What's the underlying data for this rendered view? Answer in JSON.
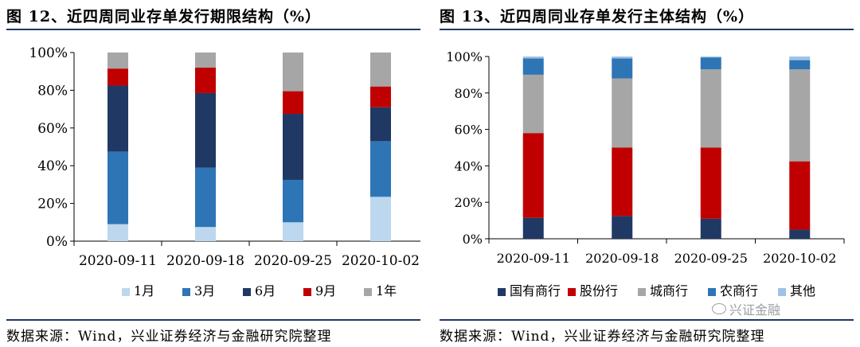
{
  "left": {
    "title": "图 12、近四周同业存单发行期限结构（%）",
    "source": "数据来源：Wind，兴业证券经济与金融研究院整理"
  },
  "right": {
    "title": "图 13、近四周同业存单发行主体结构（%）",
    "source": "数据来源：Wind，兴业证券经济与金融研究院整理"
  },
  "watermark": "兴证金融",
  "chart_data": [
    {
      "type": "bar",
      "stacked": true,
      "categories": [
        "2020-09-11",
        "2020-09-18",
        "2020-09-25",
        "2020-10-02"
      ],
      "series": [
        {
          "name": "1月",
          "color": "#bdd7ee",
          "values": [
            9,
            7.5,
            10,
            23.5
          ]
        },
        {
          "name": "3月",
          "color": "#2e75b6",
          "values": [
            38.5,
            31.5,
            22.5,
            29.5
          ]
        },
        {
          "name": "6月",
          "color": "#203864",
          "values": [
            35,
            39.5,
            35,
            18
          ]
        },
        {
          "name": "9月",
          "color": "#c00000",
          "values": [
            9,
            13.5,
            12,
            11
          ]
        },
        {
          "name": "1年",
          "color": "#a6a6a6",
          "values": [
            8.5,
            8,
            20.5,
            18
          ]
        }
      ],
      "ylim": [
        0,
        100
      ],
      "yticks": [
        "0%",
        "20%",
        "40%",
        "60%",
        "80%",
        "100%"
      ],
      "grid": false,
      "legend": "bottom"
    },
    {
      "type": "bar",
      "stacked": true,
      "categories": [
        "2020-09-11",
        "2020-09-18",
        "2020-09-25",
        "2020-10-02"
      ],
      "series": [
        {
          "name": "国有商行",
          "color": "#203864",
          "values": [
            11.5,
            12.5,
            11,
            5
          ]
        },
        {
          "name": "股份行",
          "color": "#c00000",
          "values": [
            46.5,
            37.5,
            39,
            37.5
          ]
        },
        {
          "name": "城商行",
          "color": "#a6a6a6",
          "values": [
            32,
            38,
            43,
            50.5
          ]
        },
        {
          "name": "农商行",
          "color": "#2e75b6",
          "values": [
            9,
            11,
            6.5,
            5
          ]
        },
        {
          "name": "其他",
          "color": "#9dc3e6",
          "values": [
            1,
            1,
            0.5,
            2
          ]
        }
      ],
      "ylim": [
        0,
        100
      ],
      "yticks": [
        "0%",
        "20%",
        "40%",
        "60%",
        "80%",
        "100%"
      ],
      "grid": false,
      "legend": "bottom"
    }
  ]
}
